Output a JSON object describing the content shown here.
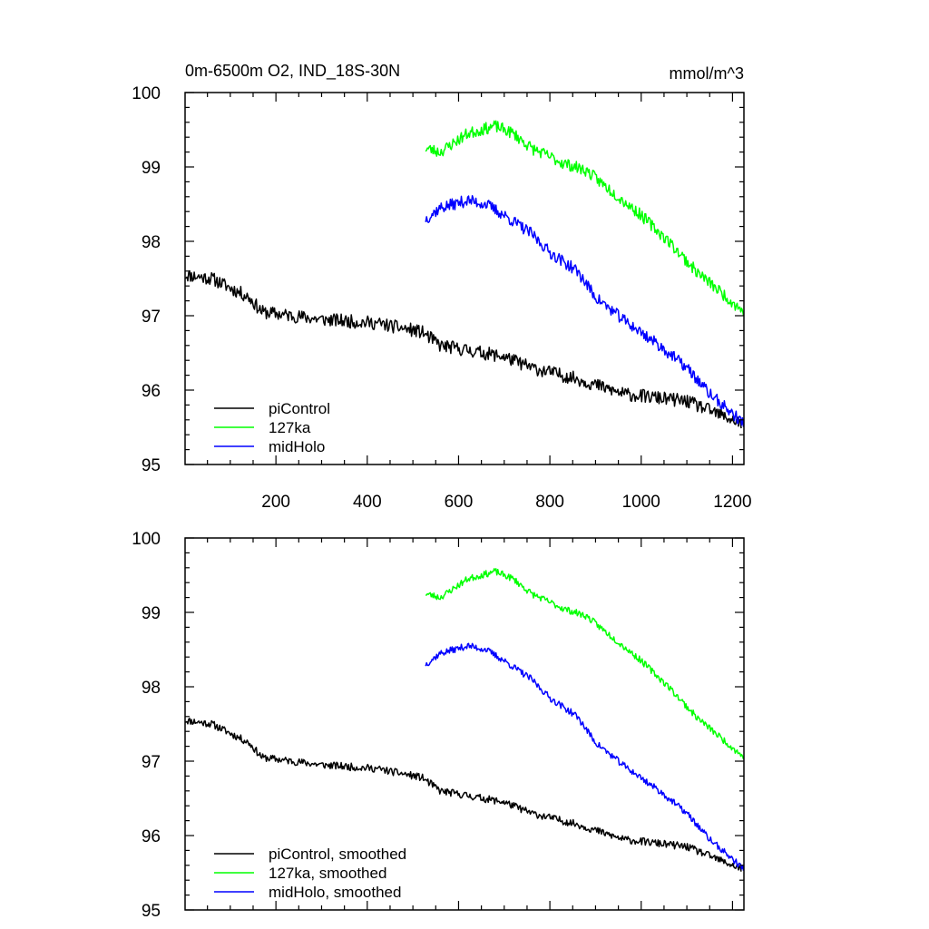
{
  "chart_data": [
    {
      "type": "line",
      "title": "0m-6500m O2, IND_18S-30N",
      "units": "mmol/m^3",
      "xlim": [
        1,
        1225
      ],
      "ylim": [
        95,
        100
      ],
      "x_ticks": [
        200,
        400,
        600,
        800,
        1000,
        1200
      ],
      "x_tick_labels": [
        "200",
        "400",
        "600",
        "800",
        "1000",
        "1200"
      ],
      "y_ticks": [
        95,
        96,
        97,
        98,
        99,
        100
      ],
      "y_tick_labels": [
        "95",
        "96",
        "97",
        "98",
        "99",
        "100"
      ],
      "legend_position": "bottom-left",
      "series": [
        {
          "name": "piControl",
          "color": "#000000",
          "noise": 0.09,
          "seed": 11,
          "points": [
            [
              1,
              97.55
            ],
            [
              60,
              97.5
            ],
            [
              140,
              97.25
            ],
            [
              170,
              97.05
            ],
            [
              300,
              96.95
            ],
            [
              420,
              96.9
            ],
            [
              520,
              96.78
            ],
            [
              560,
              96.6
            ],
            [
              700,
              96.45
            ],
            [
              760,
              96.3
            ],
            [
              860,
              96.15
            ],
            [
              960,
              95.95
            ],
            [
              1100,
              95.85
            ],
            [
              1220,
              95.55
            ]
          ]
        },
        {
          "name": "127ka",
          "color": "#00ff00",
          "noise": 0.08,
          "seed": 23,
          "points": [
            [
              528,
              99.25
            ],
            [
              560,
              99.2
            ],
            [
              620,
              99.45
            ],
            [
              680,
              99.55
            ],
            [
              720,
              99.45
            ],
            [
              760,
              99.25
            ],
            [
              830,
              99.05
            ],
            [
              880,
              98.95
            ],
            [
              920,
              98.75
            ],
            [
              1000,
              98.35
            ],
            [
              1060,
              98.0
            ],
            [
              1120,
              97.6
            ],
            [
              1225,
              97.05
            ]
          ]
        },
        {
          "name": "midHolo",
          "color": "#0000ff",
          "noise": 0.08,
          "seed": 37,
          "points": [
            [
              528,
              98.3
            ],
            [
              560,
              98.45
            ],
            [
              620,
              98.55
            ],
            [
              660,
              98.5
            ],
            [
              700,
              98.35
            ],
            [
              760,
              98.1
            ],
            [
              800,
              97.85
            ],
            [
              860,
              97.6
            ],
            [
              900,
              97.25
            ],
            [
              960,
              96.95
            ],
            [
              1040,
              96.6
            ],
            [
              1100,
              96.3
            ],
            [
              1150,
              95.95
            ],
            [
              1225,
              95.55
            ]
          ]
        }
      ]
    },
    {
      "type": "line",
      "title": "",
      "units": "",
      "xlim": [
        1,
        1225
      ],
      "ylim": [
        95,
        100
      ],
      "x_ticks": [
        200,
        400,
        600,
        800,
        1000,
        1200
      ],
      "x_tick_labels": [],
      "y_ticks": [
        95,
        96,
        97,
        98,
        99,
        100
      ],
      "y_tick_labels": [
        "95",
        "96",
        "97",
        "98",
        "99",
        "100"
      ],
      "legend_position": "bottom-left",
      "series": [
        {
          "name": "piControl, smoothed",
          "color": "#000000",
          "noise": 0.05,
          "seed": 11,
          "points": [
            [
              1,
              97.55
            ],
            [
              60,
              97.5
            ],
            [
              140,
              97.25
            ],
            [
              170,
              97.05
            ],
            [
              300,
              96.95
            ],
            [
              420,
              96.9
            ],
            [
              520,
              96.78
            ],
            [
              560,
              96.6
            ],
            [
              700,
              96.45
            ],
            [
              760,
              96.3
            ],
            [
              860,
              96.15
            ],
            [
              960,
              95.95
            ],
            [
              1100,
              95.85
            ],
            [
              1220,
              95.55
            ]
          ]
        },
        {
          "name": "127ka, smoothed",
          "color": "#00ff00",
          "noise": 0.045,
          "seed": 23,
          "points": [
            [
              528,
              99.25
            ],
            [
              560,
              99.2
            ],
            [
              620,
              99.45
            ],
            [
              680,
              99.55
            ],
            [
              720,
              99.45
            ],
            [
              760,
              99.25
            ],
            [
              830,
              99.05
            ],
            [
              880,
              98.95
            ],
            [
              920,
              98.75
            ],
            [
              1000,
              98.35
            ],
            [
              1060,
              98.0
            ],
            [
              1120,
              97.6
            ],
            [
              1225,
              97.05
            ]
          ]
        },
        {
          "name": "midHolo, smoothed",
          "color": "#0000ff",
          "noise": 0.045,
          "seed": 37,
          "points": [
            [
              528,
              98.3
            ],
            [
              560,
              98.45
            ],
            [
              620,
              98.55
            ],
            [
              660,
              98.5
            ],
            [
              700,
              98.35
            ],
            [
              760,
              98.1
            ],
            [
              800,
              97.85
            ],
            [
              860,
              97.6
            ],
            [
              900,
              97.25
            ],
            [
              960,
              96.95
            ],
            [
              1040,
              96.6
            ],
            [
              1100,
              96.3
            ],
            [
              1150,
              95.95
            ],
            [
              1225,
              95.55
            ]
          ]
        }
      ]
    }
  ]
}
